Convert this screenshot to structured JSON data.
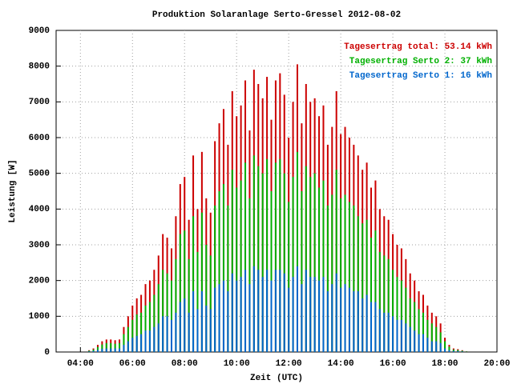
{
  "chart_data": {
    "type": "bar",
    "title": "Produktion Solaranlage Serto-Gressel 2012-08-02",
    "x_label": "Zeit (UTC)",
    "y_label": "Leistung [W]",
    "x": [
      260,
      270,
      280,
      290,
      300,
      310,
      320,
      330,
      340,
      350,
      360,
      370,
      380,
      390,
      400,
      410,
      420,
      430,
      440,
      450,
      460,
      470,
      480,
      490,
      500,
      510,
      520,
      530,
      540,
      550,
      560,
      570,
      580,
      590,
      600,
      610,
      620,
      630,
      640,
      650,
      660,
      670,
      680,
      690,
      700,
      710,
      720,
      730,
      740,
      750,
      760,
      770,
      780,
      790,
      800,
      810,
      820,
      830,
      840,
      850,
      860,
      870,
      880,
      890,
      900,
      910,
      920,
      930,
      940,
      950,
      960,
      970,
      980,
      990,
      1000,
      1010,
      1020,
      1030,
      1040,
      1050,
      1060,
      1070,
      1080,
      1090,
      1100,
      1110,
      1120,
      1130
    ],
    "series": [
      {
        "name": "Tagesertrag total: 53.14 kWh",
        "color": "#cc0000",
        "values": [
          50,
          100,
          200,
          300,
          350,
          350,
          330,
          350,
          700,
          1000,
          1300,
          1500,
          1600,
          1900,
          2000,
          2300,
          2700,
          3300,
          3200,
          2900,
          3800,
          4700,
          4900,
          3700,
          5500,
          4000,
          5600,
          4300,
          3900,
          5900,
          6400,
          6800,
          5800,
          7300,
          6600,
          6900,
          7600,
          6200,
          7900,
          7500,
          7100,
          7700,
          6500,
          7600,
          7800,
          7200,
          6000,
          7000,
          8050,
          6400,
          7500,
          7000,
          7100,
          6600,
          6900,
          5800,
          6300,
          7300,
          6100,
          6300,
          6000,
          5800,
          5500,
          5100,
          5300,
          4600,
          4800,
          4000,
          3800,
          3700,
          3300,
          3000,
          2900,
          2600,
          2200,
          2000,
          1700,
          1600,
          1300,
          1100,
          1000,
          800,
          400,
          200,
          100,
          80,
          50,
          20
        ]
      },
      {
        "name": "Tagesertrag Serto 2: 37 kWh",
        "color": "#00b000",
        "values": [
          35,
          70,
          140,
          210,
          250,
          250,
          230,
          250,
          500,
          700,
          900,
          1050,
          1100,
          1300,
          1400,
          1600,
          1900,
          2300,
          2200,
          2000,
          2600,
          3300,
          3400,
          2600,
          3800,
          2800,
          3900,
          3000,
          2700,
          4100,
          4500,
          4700,
          4100,
          5100,
          4600,
          4800,
          5300,
          4300,
          5500,
          5200,
          5000,
          5400,
          4500,
          5300,
          5400,
          5000,
          4200,
          4900,
          5600,
          4500,
          5200,
          4900,
          5000,
          4600,
          4800,
          4100,
          4400,
          5100,
          4300,
          4400,
          4200,
          4100,
          3800,
          3600,
          3700,
          3200,
          3400,
          2800,
          2700,
          2600,
          2300,
          2100,
          2000,
          1800,
          1500,
          1400,
          1200,
          1100,
          900,
          800,
          700,
          550,
          300,
          150,
          70,
          55,
          35,
          15
        ]
      },
      {
        "name": "Tagesertrag Serto 1: 16 kWh",
        "color": "#0066cc",
        "values": [
          15,
          30,
          60,
          90,
          100,
          100,
          100,
          100,
          200,
          300,
          400,
          450,
          500,
          600,
          600,
          700,
          800,
          1000,
          1000,
          900,
          1100,
          1400,
          1500,
          1100,
          1700,
          1200,
          1700,
          1300,
          1200,
          1800,
          1900,
          2000,
          1700,
          2200,
          2000,
          2100,
          2300,
          1900,
          2400,
          2300,
          2100,
          2300,
          2000,
          2300,
          2300,
          2200,
          1800,
          2100,
          2400,
          1900,
          2300,
          2100,
          2100,
          2000,
          2100,
          1700,
          1900,
          2200,
          1800,
          1900,
          1800,
          1700,
          1700,
          1500,
          1600,
          1400,
          1400,
          1200,
          1100,
          1100,
          1000,
          900,
          900,
          800,
          700,
          600,
          500,
          500,
          400,
          300,
          300,
          250,
          100,
          50,
          30,
          25,
          15,
          5
        ]
      }
    ],
    "xlim": [
      184,
      1200
    ],
    "xticks": [
      {
        "value": 240,
        "label": "04:00"
      },
      {
        "value": 360,
        "label": "06:00"
      },
      {
        "value": 480,
        "label": "08:00"
      },
      {
        "value": 600,
        "label": "10:00"
      },
      {
        "value": 720,
        "label": "12:00"
      },
      {
        "value": 840,
        "label": "14:00"
      },
      {
        "value": 960,
        "label": "16:00"
      },
      {
        "value": 1080,
        "label": "18:00"
      },
      {
        "value": 1200,
        "label": "20:00"
      }
    ],
    "ylim": [
      0,
      9000
    ],
    "yticks": [
      0,
      1000,
      2000,
      3000,
      4000,
      5000,
      6000,
      7000,
      8000,
      9000
    ],
    "grid": true,
    "legend": "top-right"
  }
}
